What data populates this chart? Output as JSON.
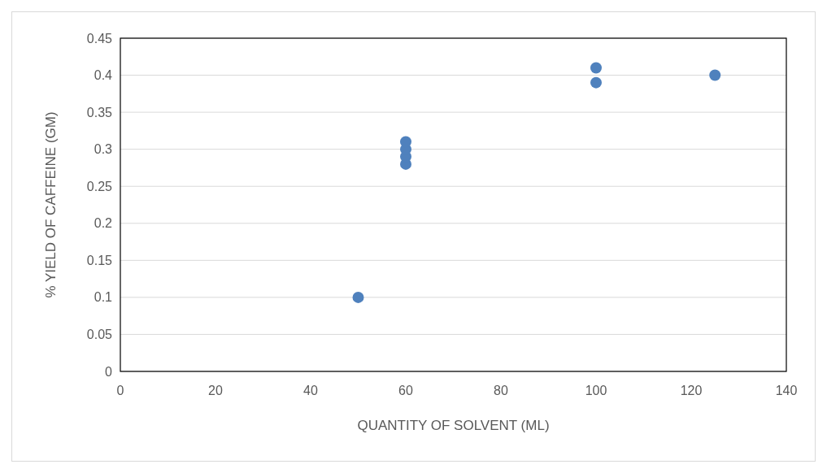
{
  "chart_data": {
    "type": "scatter",
    "xlabel": "QUANTITY OF SOLVENT (ML)",
    "ylabel": "% YIELD OF CAFFEINE (GM)",
    "x": [
      50,
      60,
      60,
      60,
      60,
      100,
      100,
      125
    ],
    "series": [
      {
        "color": "#4f81bd",
        "values": [
          0.1,
          0.28,
          0.29,
          0.3,
          0.31,
          0.39,
          0.41,
          0.4
        ]
      }
    ],
    "xlim": [
      0,
      140
    ],
    "xticks": [
      0,
      20,
      40,
      60,
      80,
      100,
      120,
      140
    ],
    "ylim": [
      0,
      0.45
    ],
    "yticks": [
      0,
      0.05,
      0.1,
      0.15,
      0.2,
      0.25,
      0.3,
      0.35,
      0.4,
      0.45
    ],
    "grid": "y",
    "marker": "circle"
  }
}
